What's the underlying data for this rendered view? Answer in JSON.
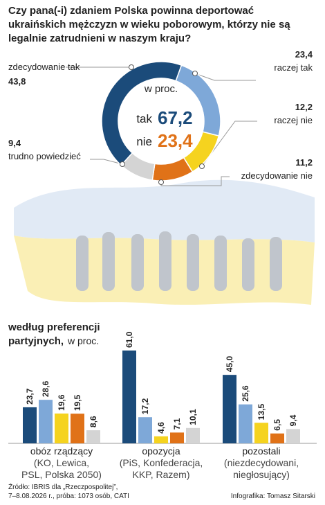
{
  "chart_data": [
    {
      "type": "donut",
      "title": [
        "Czy pana(-i) zdaniem Polska powinna deportować",
        "ukraińskich mężczyzn w wieku poborowym, którzy nie są",
        "legalnie zatrudnieni w naszym kraju?"
      ],
      "center_label": "w proc.",
      "summary": {
        "labels": [
          "tak",
          "nie"
        ],
        "values": [
          67.2,
          23.4
        ],
        "value_labels": [
          "67,2",
          "23,4"
        ],
        "colors": [
          "#1b4b7a",
          "#e07218"
        ]
      },
      "categories": [
        "zdecydowanie tak",
        "raczej tak",
        "raczej nie",
        "zdecydowanie nie",
        "trudno powiedzieć"
      ],
      "values": [
        43.8,
        23.4,
        12.2,
        11.2,
        9.4
      ],
      "value_labels": [
        "43,8",
        "23,4",
        "12,2",
        "11,2",
        "9,4"
      ],
      "colors": [
        "#1b4b7a",
        "#7ea8d8",
        "#f5d31f",
        "#e07218",
        "#d4d4d4"
      ]
    },
    {
      "type": "bar",
      "title": [
        "według preferencji",
        "partyjnych,"
      ],
      "subtitle": "w proc.",
      "categories": [
        "obóz rządzący",
        "opozycja",
        "pozostali"
      ],
      "category_notes": [
        [
          "(KO, Lewica,",
          "PSL, Polska 2050)"
        ],
        [
          "(PiS, Konfederacja,",
          "KKP, Razem)"
        ],
        [
          "(niezdecydowani,",
          "niegłosujący)"
        ]
      ],
      "ylim": [
        0,
        61
      ],
      "series": [
        {
          "color": "#1b4b7a",
          "values": [
            23.7,
            61.0,
            45.0
          ],
          "value_labels": [
            "23,7",
            "61,0",
            "45,0"
          ]
        },
        {
          "color": "#7ea8d8",
          "values": [
            28.6,
            17.2,
            25.6
          ],
          "value_labels": [
            "28,6",
            "17,2",
            "25,6"
          ]
        },
        {
          "color": "#f5d31f",
          "values": [
            19.6,
            4.6,
            13.5
          ],
          "value_labels": [
            "19,6",
            "4,6",
            "13,5"
          ]
        },
        {
          "color": "#e07218",
          "values": [
            19.5,
            7.1,
            6.5
          ],
          "value_labels": [
            "19,5",
            "7,1",
            "6,5"
          ]
        },
        {
          "color": "#d4d4d4",
          "values": [
            8.6,
            10.1,
            9.4
          ],
          "value_labels": [
            "8,6",
            "10,1",
            "9,4"
          ]
        }
      ]
    }
  ],
  "footer": {
    "source": [
      "Źródło: IBRIS dla „Rzeczpospolitej”,",
      "7–8.08.2026 r., próba: 1073 osób, CATI"
    ],
    "credit": "Infografika: Tomasz Sitarski"
  }
}
